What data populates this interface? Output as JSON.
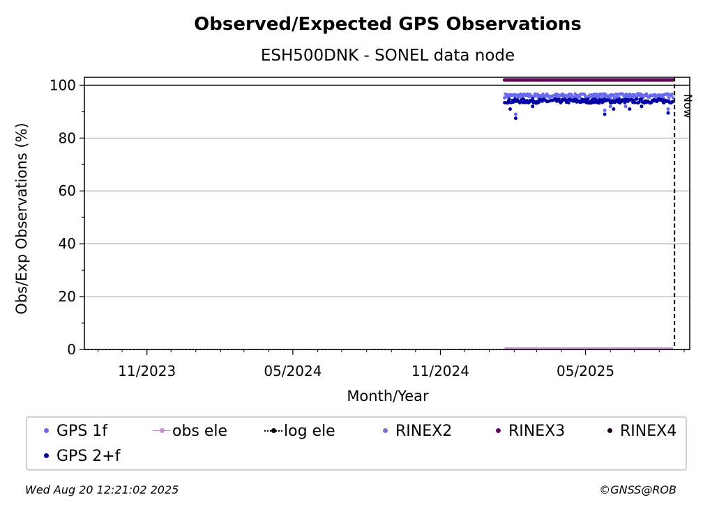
{
  "chart_data": {
    "type": "scatter",
    "title": "Observed/Expected GPS Observations",
    "subtitle": "ESH500DNK - SONEL data node",
    "xlabel": "Month/Year",
    "ylabel": "Obs/Exp Observations (%)",
    "ylim": [
      0,
      103
    ],
    "xlim": [
      "2023-08-15",
      "2025-09-08"
    ],
    "x_ticks": [
      {
        "date": "2023-11-01",
        "label": "11/2023"
      },
      {
        "date": "2024-05-01",
        "label": "05/2024"
      },
      {
        "date": "2024-11-01",
        "label": "11/2024"
      },
      {
        "date": "2025-05-01",
        "label": "05/2025"
      }
    ],
    "y_ticks": [
      0,
      20,
      40,
      60,
      80,
      100
    ],
    "grid": "horizontal",
    "reference_line_y": 100,
    "now": {
      "date": "2025-08-20",
      "label": "Now"
    },
    "series": [
      {
        "name": "GPS 1f",
        "color": "#6a6af0",
        "kind": "dots",
        "date_range": [
          "2025-01-20",
          "2025-08-18"
        ],
        "typical_value": 96,
        "outliers": [
          {
            "date": "2025-02-03",
            "value": 89
          },
          {
            "date": "2025-05-25",
            "value": 90.5
          },
          {
            "date": "2025-06-01",
            "value": 92
          },
          {
            "date": "2025-06-20",
            "value": 92
          },
          {
            "date": "2025-08-12",
            "value": 91
          }
        ]
      },
      {
        "name": "GPS 2+f",
        "color": "#0000a0",
        "kind": "dots",
        "date_range": [
          "2025-01-20",
          "2025-08-18"
        ],
        "typical_value": 94,
        "outliers": [
          {
            "date": "2025-01-27",
            "value": 91
          },
          {
            "date": "2025-02-03",
            "value": 87.5
          },
          {
            "date": "2025-02-24",
            "value": 92
          },
          {
            "date": "2025-05-25",
            "value": 89
          },
          {
            "date": "2025-06-05",
            "value": 91
          },
          {
            "date": "2025-06-25",
            "value": 91
          },
          {
            "date": "2025-07-10",
            "value": 92
          },
          {
            "date": "2025-08-12",
            "value": 89.5
          }
        ]
      },
      {
        "name": "obs ele",
        "color": "#c38fd0",
        "kind": "line",
        "date_range": [
          "2025-01-20",
          "2025-08-18"
        ],
        "value": 0
      },
      {
        "name": "log ele",
        "color": "#000000",
        "kind": "dotted-line",
        "date_range": [
          "2023-08-15",
          "2025-09-08"
        ],
        "value": 0
      },
      {
        "name": "RINEX2",
        "color": "#8070c0",
        "kind": "dots",
        "values": []
      },
      {
        "name": "RINEX3",
        "color": "#5c0a5c",
        "kind": "dots",
        "date_range": [
          "2025-01-20",
          "2025-08-18"
        ],
        "value": 102
      },
      {
        "name": "RINEX4",
        "color": "#200020",
        "kind": "dots",
        "values": []
      }
    ],
    "legend_placement": "bottom"
  },
  "legend": {
    "items": [
      {
        "label": "GPS 1f",
        "color": "#6a6af0",
        "marker": "dot"
      },
      {
        "label": "obs ele",
        "color": "#c38fd0",
        "marker": "line-dot"
      },
      {
        "label": "log ele",
        "color": "#000000",
        "marker": "dotted-line-dot"
      },
      {
        "label": "RINEX2",
        "color": "#8070c0",
        "marker": "dot"
      },
      {
        "label": "RINEX3",
        "color": "#5c0a5c",
        "marker": "dot"
      },
      {
        "label": "RINEX4",
        "color": "#200020",
        "marker": "dot"
      },
      {
        "label": "GPS 2+f",
        "color": "#0000a0",
        "marker": "dot"
      }
    ]
  },
  "footer": {
    "timestamp": "Wed Aug 20 12:21:02 2025",
    "credit": "©GNSS@ROB"
  }
}
